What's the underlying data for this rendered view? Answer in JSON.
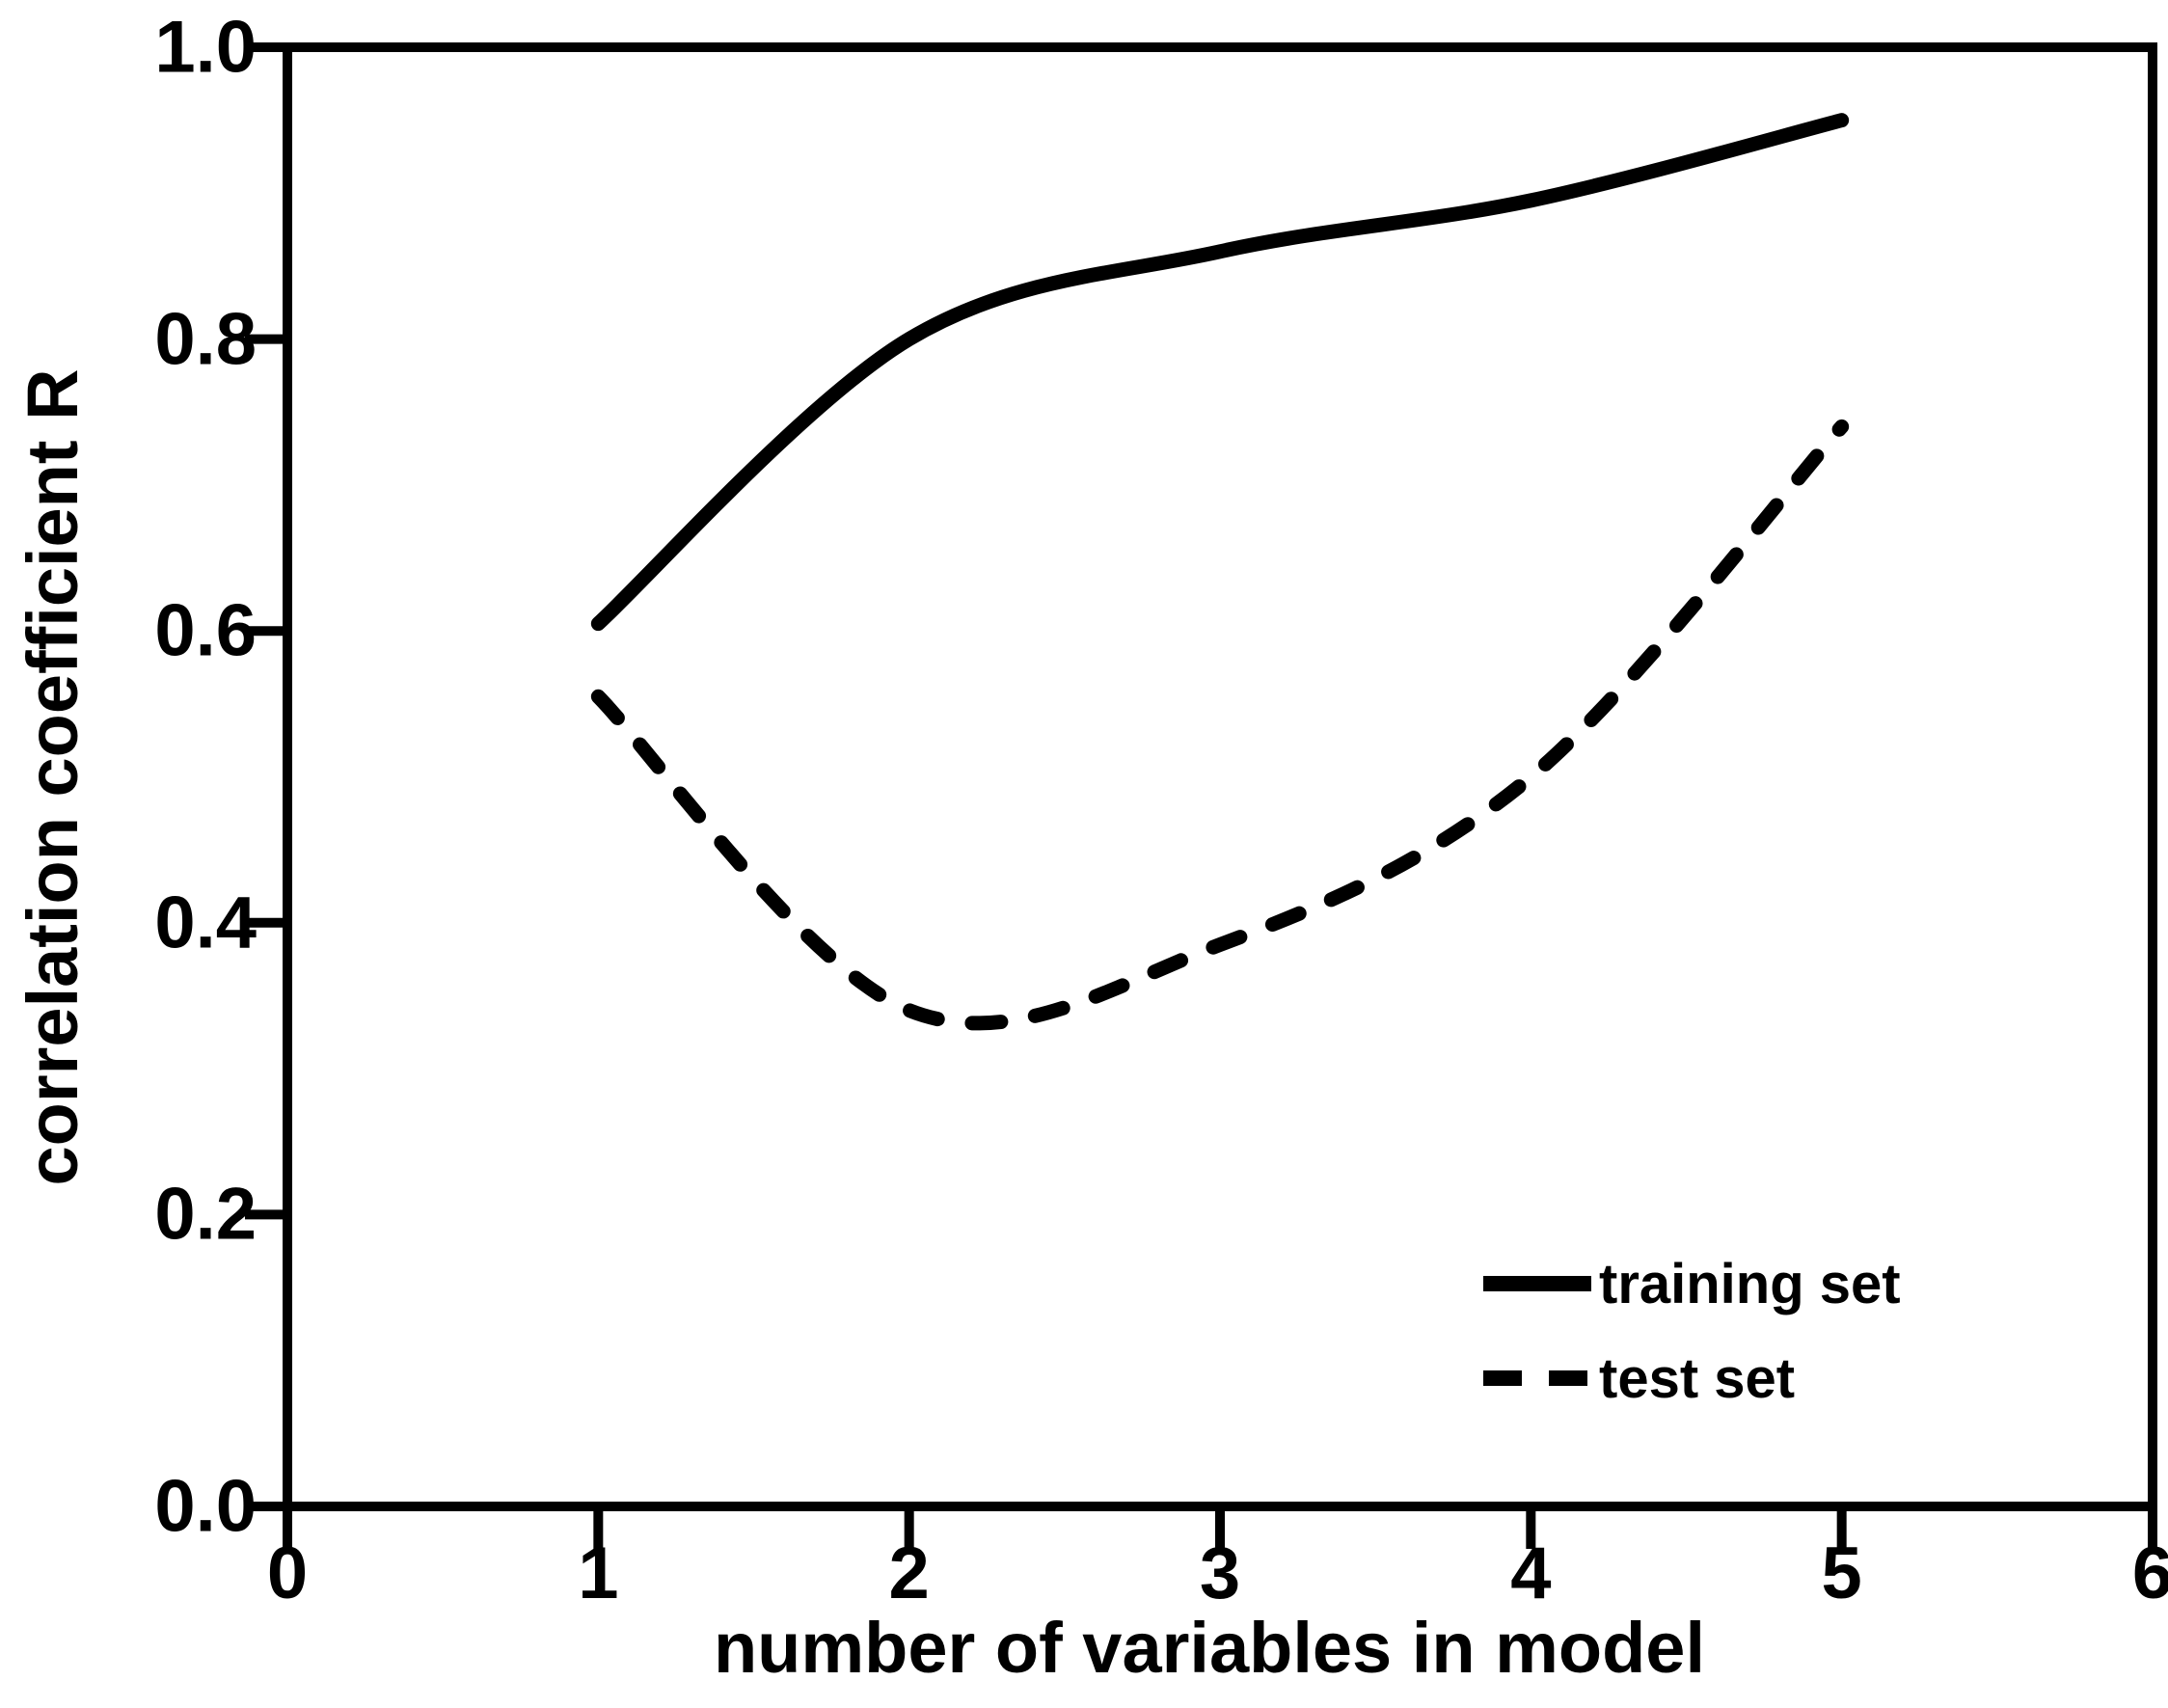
{
  "chart_data": {
    "type": "line",
    "title": "",
    "xlabel": "number of variables in model",
    "ylabel": "correlation coefficient R",
    "xlim": [
      0,
      6
    ],
    "ylim": [
      0.0,
      1.0
    ],
    "x_ticks": [
      "0",
      "1",
      "2",
      "3",
      "4",
      "5",
      "6"
    ],
    "y_ticks": [
      "0.0",
      "0.2",
      "0.4",
      "0.6",
      "0.8",
      "1.0"
    ],
    "grid": false,
    "background_color": "#ffffff",
    "axis_color": "#000000",
    "line_smoothing": true,
    "legend_position": "inside-bottom-right",
    "series": [
      {
        "name": "training set",
        "line_style": "solid",
        "color": "#000000",
        "x": [
          1,
          2,
          3,
          4,
          5
        ],
        "values": [
          0.605,
          0.8,
          0.86,
          0.895,
          0.95
        ]
      },
      {
        "name": "test set",
        "line_style": "dashed",
        "color": "#000000",
        "x": [
          1,
          2,
          3,
          4,
          5
        ],
        "values": [
          0.555,
          0.34,
          0.385,
          0.5,
          0.74
        ]
      }
    ]
  }
}
